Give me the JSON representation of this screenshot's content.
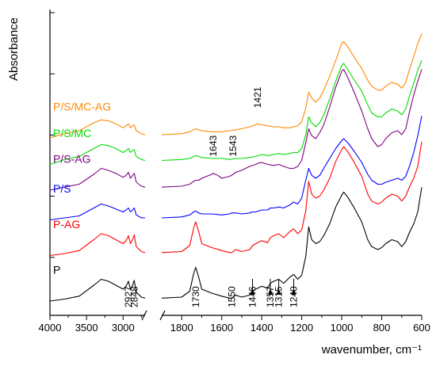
{
  "chart_data": {
    "type": "line",
    "title": "",
    "xlabel": "wavenumber, cm⁻¹",
    "ylabel": "Absorbance",
    "x_ticks": [
      4000,
      3500,
      3000,
      1800,
      1600,
      1400,
      1200,
      1000,
      800,
      600
    ],
    "x_tick_labels": [
      "4000",
      "3500",
      "3000",
      "1800",
      "1600",
      "1400",
      "1200",
      "1000",
      "800",
      "600"
    ],
    "xlim": [
      4000,
      600
    ],
    "x_break": [
      2700,
      1900
    ],
    "y_ticks_shown": true,
    "y_tick_labels_shown": false,
    "series": [
      {
        "name": "P",
        "color": "#000000",
        "offset": 0.0,
        "x": [
          4000,
          3800,
          3600,
          3400,
          3300,
          3200,
          3100,
          3000,
          2960,
          2927,
          2900,
          2870,
          2848,
          2820,
          2750,
          2700,
          1900,
          1800,
          1760,
          1740,
          1730,
          1715,
          1700,
          1650,
          1600,
          1560,
          1550,
          1530,
          1500,
          1460,
          1446,
          1430,
          1400,
          1370,
          1357,
          1340,
          1315,
          1290,
          1260,
          1240,
          1220,
          1200,
          1180,
          1165,
          1150,
          1130,
          1110,
          1090,
          1060,
          1030,
          1000,
          990,
          970,
          940,
          900,
          870,
          850,
          820,
          800,
          780,
          750,
          720,
          700,
          680,
          660,
          640,
          620,
          600
        ],
        "y": [
          0.0,
          0.02,
          0.05,
          0.16,
          0.22,
          0.2,
          0.16,
          0.12,
          0.15,
          0.2,
          0.12,
          0.16,
          0.21,
          0.09,
          0.04,
          0.03,
          0.03,
          0.04,
          0.1,
          0.28,
          0.34,
          0.24,
          0.12,
          0.08,
          0.05,
          0.03,
          0.03,
          0.06,
          0.04,
          0.06,
          0.1,
          0.12,
          0.15,
          0.13,
          0.18,
          0.2,
          0.22,
          0.18,
          0.24,
          0.27,
          0.22,
          0.26,
          0.45,
          0.75,
          0.62,
          0.58,
          0.6,
          0.66,
          0.78,
          0.95,
          1.07,
          1.1,
          1.05,
          0.95,
          0.8,
          0.62,
          0.55,
          0.52,
          0.54,
          0.58,
          0.62,
          0.6,
          0.55,
          0.6,
          0.7,
          0.78,
          0.9,
          1.15
        ]
      },
      {
        "name": "P-AG",
        "color": "#ff0000",
        "offset": 0.46,
        "x": [
          4000,
          3800,
          3600,
          3400,
          3300,
          3200,
          3100,
          3000,
          2960,
          2927,
          2900,
          2870,
          2848,
          2820,
          2750,
          2700,
          1900,
          1800,
          1760,
          1740,
          1730,
          1715,
          1700,
          1650,
          1600,
          1560,
          1550,
          1530,
          1500,
          1460,
          1446,
          1430,
          1400,
          1370,
          1357,
          1340,
          1315,
          1290,
          1260,
          1240,
          1220,
          1200,
          1180,
          1165,
          1150,
          1130,
          1110,
          1090,
          1060,
          1030,
          1000,
          990,
          970,
          940,
          900,
          870,
          850,
          820,
          800,
          780,
          750,
          720,
          700,
          680,
          660,
          640,
          620,
          600
        ],
        "y": [
          0.0,
          0.02,
          0.05,
          0.16,
          0.22,
          0.2,
          0.16,
          0.12,
          0.15,
          0.2,
          0.12,
          0.16,
          0.21,
          0.09,
          0.04,
          0.03,
          0.03,
          0.04,
          0.1,
          0.28,
          0.34,
          0.24,
          0.12,
          0.08,
          0.05,
          0.03,
          0.03,
          0.06,
          0.04,
          0.06,
          0.1,
          0.12,
          0.15,
          0.13,
          0.18,
          0.2,
          0.22,
          0.18,
          0.24,
          0.27,
          0.22,
          0.26,
          0.45,
          0.75,
          0.62,
          0.58,
          0.6,
          0.66,
          0.78,
          0.95,
          1.07,
          1.1,
          1.05,
          0.95,
          0.8,
          0.62,
          0.55,
          0.52,
          0.54,
          0.58,
          0.62,
          0.6,
          0.55,
          0.6,
          0.7,
          0.78,
          0.9,
          1.15
        ]
      },
      {
        "name": "P/S",
        "color": "#0000ff",
        "offset": 0.82,
        "x": [
          4000,
          3800,
          3600,
          3400,
          3300,
          3200,
          3100,
          3000,
          2960,
          2927,
          2900,
          2870,
          2848,
          2820,
          2750,
          2700,
          1900,
          1800,
          1760,
          1740,
          1730,
          1715,
          1700,
          1650,
          1600,
          1560,
          1550,
          1530,
          1500,
          1460,
          1446,
          1430,
          1400,
          1370,
          1357,
          1340,
          1315,
          1290,
          1260,
          1240,
          1220,
          1200,
          1180,
          1165,
          1150,
          1130,
          1110,
          1090,
          1060,
          1030,
          1000,
          990,
          970,
          940,
          900,
          870,
          850,
          820,
          800,
          780,
          750,
          720,
          700,
          680,
          660,
          640,
          620,
          600
        ],
        "y": [
          0.0,
          0.02,
          0.04,
          0.12,
          0.16,
          0.14,
          0.11,
          0.08,
          0.1,
          0.12,
          0.08,
          0.1,
          0.12,
          0.05,
          0.02,
          0.02,
          0.02,
          0.03,
          0.05,
          0.08,
          0.09,
          0.07,
          0.06,
          0.06,
          0.05,
          0.06,
          0.07,
          0.07,
          0.06,
          0.07,
          0.08,
          0.08,
          0.1,
          0.1,
          0.12,
          0.12,
          0.13,
          0.12,
          0.15,
          0.18,
          0.16,
          0.22,
          0.4,
          0.52,
          0.45,
          0.42,
          0.45,
          0.52,
          0.62,
          0.72,
          0.8,
          0.82,
          0.78,
          0.7,
          0.58,
          0.46,
          0.4,
          0.36,
          0.36,
          0.38,
          0.4,
          0.42,
          0.4,
          0.44,
          0.55,
          0.68,
          0.85,
          1.05
        ]
      },
      {
        "name": "P/S-AG",
        "color": "#800080",
        "offset": 1.12,
        "x": [
          4000,
          3800,
          3600,
          3400,
          3300,
          3200,
          3100,
          3000,
          2960,
          2927,
          2900,
          2870,
          2848,
          2820,
          2750,
          2700,
          1900,
          1800,
          1760,
          1740,
          1730,
          1715,
          1700,
          1650,
          1643,
          1620,
          1600,
          1560,
          1543,
          1530,
          1500,
          1460,
          1430,
          1421,
          1400,
          1370,
          1340,
          1315,
          1290,
          1260,
          1240,
          1220,
          1200,
          1180,
          1165,
          1150,
          1130,
          1110,
          1090,
          1060,
          1030,
          1000,
          990,
          970,
          940,
          900,
          870,
          850,
          820,
          800,
          780,
          750,
          720,
          700,
          680,
          660,
          640,
          620,
          600
        ],
        "y": [
          0.0,
          0.03,
          0.06,
          0.16,
          0.22,
          0.2,
          0.17,
          0.13,
          0.15,
          0.18,
          0.12,
          0.15,
          0.17,
          0.08,
          0.04,
          0.03,
          0.03,
          0.04,
          0.06,
          0.09,
          0.1,
          0.1,
          0.12,
          0.16,
          0.17,
          0.15,
          0.12,
          0.14,
          0.16,
          0.18,
          0.2,
          0.24,
          0.26,
          0.27,
          0.28,
          0.26,
          0.25,
          0.26,
          0.24,
          0.22,
          0.22,
          0.24,
          0.3,
          0.48,
          0.62,
          0.55,
          0.52,
          0.58,
          0.66,
          0.84,
          1.04,
          1.2,
          1.22,
          1.14,
          1.0,
          0.8,
          0.62,
          0.52,
          0.44,
          0.46,
          0.52,
          0.58,
          0.6,
          0.56,
          0.62,
          0.8,
          0.96,
          1.1,
          1.22
        ]
      },
      {
        "name": "P/S/MC",
        "color": "#00dd00",
        "offset": 1.38,
        "x": [
          4000,
          3800,
          3600,
          3400,
          3300,
          3200,
          3100,
          3000,
          2960,
          2927,
          2900,
          2870,
          2848,
          2820,
          2750,
          2700,
          1900,
          1800,
          1760,
          1740,
          1730,
          1715,
          1700,
          1650,
          1600,
          1560,
          1530,
          1500,
          1460,
          1430,
          1400,
          1370,
          1340,
          1315,
          1290,
          1260,
          1240,
          1220,
          1200,
          1180,
          1165,
          1150,
          1130,
          1110,
          1090,
          1060,
          1030,
          1000,
          990,
          970,
          940,
          900,
          870,
          850,
          820,
          800,
          780,
          750,
          720,
          700,
          680,
          660,
          640,
          620,
          600
        ],
        "y": [
          0.0,
          0.05,
          0.08,
          0.16,
          0.2,
          0.19,
          0.16,
          0.12,
          0.14,
          0.16,
          0.12,
          0.14,
          0.15,
          0.08,
          0.05,
          0.04,
          0.04,
          0.05,
          0.06,
          0.08,
          0.09,
          0.08,
          0.07,
          0.06,
          0.06,
          0.05,
          0.06,
          0.06,
          0.07,
          0.08,
          0.1,
          0.09,
          0.1,
          0.11,
          0.1,
          0.11,
          0.12,
          0.12,
          0.16,
          0.3,
          0.48,
          0.42,
          0.38,
          0.42,
          0.5,
          0.66,
          0.84,
          1.0,
          1.02,
          0.96,
          0.86,
          0.74,
          0.6,
          0.52,
          0.48,
          0.48,
          0.52,
          0.56,
          0.54,
          0.5,
          0.56,
          0.7,
          0.82,
          0.95,
          1.05
        ]
      },
      {
        "name": "P/S/MC-AG",
        "color": "#ff8800",
        "offset": 1.65,
        "x": [
          4000,
          3800,
          3600,
          3400,
          3300,
          3200,
          3100,
          3000,
          2960,
          2927,
          2900,
          2870,
          2848,
          2820,
          2750,
          2700,
          1900,
          1800,
          1760,
          1740,
          1730,
          1715,
          1700,
          1650,
          1600,
          1560,
          1530,
          1500,
          1460,
          1430,
          1421,
          1400,
          1370,
          1340,
          1315,
          1290,
          1260,
          1240,
          1220,
          1200,
          1180,
          1165,
          1150,
          1130,
          1110,
          1090,
          1060,
          1030,
          1000,
          990,
          970,
          940,
          900,
          870,
          850,
          820,
          800,
          780,
          750,
          720,
          700,
          680,
          660,
          640,
          620,
          600
        ],
        "y": [
          0.0,
          0.04,
          0.07,
          0.15,
          0.18,
          0.17,
          0.14,
          0.1,
          0.12,
          0.14,
          0.1,
          0.12,
          0.13,
          0.07,
          0.04,
          0.03,
          0.03,
          0.04,
          0.06,
          0.08,
          0.09,
          0.08,
          0.07,
          0.06,
          0.06,
          0.07,
          0.08,
          0.09,
          0.11,
          0.13,
          0.14,
          0.13,
          0.12,
          0.11,
          0.11,
          0.1,
          0.1,
          0.11,
          0.12,
          0.16,
          0.3,
          0.46,
          0.4,
          0.36,
          0.4,
          0.48,
          0.62,
          0.78,
          0.95,
          0.97,
          0.92,
          0.82,
          0.7,
          0.58,
          0.52,
          0.48,
          0.48,
          0.52,
          0.56,
          0.54,
          0.5,
          0.56,
          0.7,
          0.82,
          0.95,
          1.05
        ]
      }
    ],
    "annotations": [
      {
        "text": "2927",
        "x": 2927,
        "arrow": false
      },
      {
        "text": "2848",
        "x": 2848,
        "arrow": false
      },
      {
        "text": "1730",
        "x": 1730,
        "arrow": false
      },
      {
        "text": "1550",
        "x": 1550,
        "arrow": false
      },
      {
        "text": "1446",
        "x": 1446,
        "arrow": true
      },
      {
        "text": "1357",
        "x": 1357,
        "arrow": true
      },
      {
        "text": "1315",
        "x": 1315,
        "arrow": true
      },
      {
        "text": "1240",
        "x": 1240,
        "arrow": true
      },
      {
        "text": "1643",
        "x": 1643,
        "arrow": false
      },
      {
        "text": "1543",
        "x": 1543,
        "arrow": false
      },
      {
        "text": "1421",
        "x": 1421,
        "arrow": false
      }
    ]
  }
}
